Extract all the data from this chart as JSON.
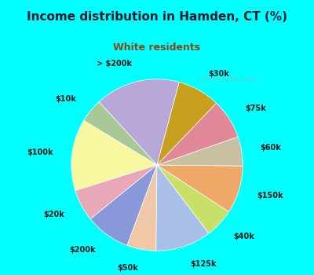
{
  "title": "Income distribution in Hamden, CT (%)",
  "subtitle": "White residents",
  "title_color": "#1a1a2e",
  "subtitle_color": "#8B4513",
  "bg_color": "#00FFFF",
  "chart_bg_color": "#e8f5ee",
  "watermark": "City-Data.com",
  "labels": [
    "> $200k",
    "$10k",
    "$100k",
    "$20k",
    "$200k",
    "$50k",
    "$125k",
    "$40k",
    "$150k",
    "$60k",
    "$75k",
    "$30k"
  ],
  "values": [
    16.0,
    4.5,
    13.5,
    6.0,
    8.5,
    5.5,
    10.5,
    5.5,
    9.0,
    5.5,
    7.5,
    8.0
  ],
  "colors": [
    "#b8a8d8",
    "#a8c898",
    "#f8f8a0",
    "#e8a8b8",
    "#8898d8",
    "#f0c8a8",
    "#a8c0e8",
    "#c8e068",
    "#f0a868",
    "#c8c0a0",
    "#e08898",
    "#c8a020"
  ],
  "startangle": 75,
  "label_fontsize": 7,
  "labeldistance": 1.22
}
